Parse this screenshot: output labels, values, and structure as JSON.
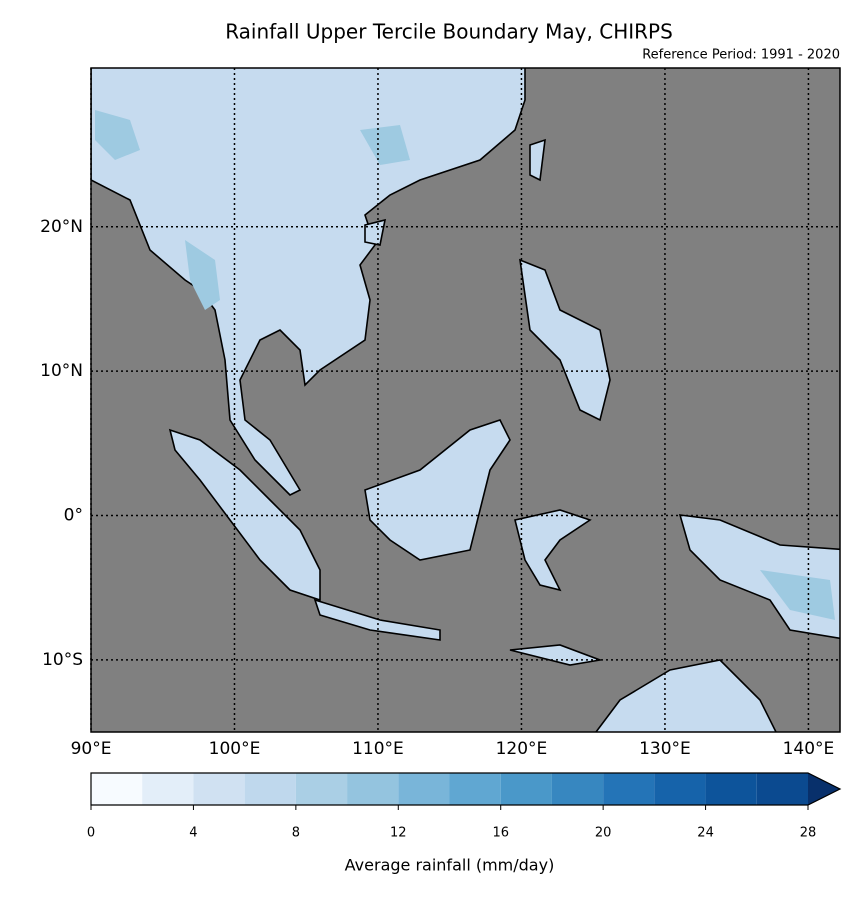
{
  "chart_data": {
    "type": "map",
    "title": "Rainfall Upper Tercile Boundary May, CHIRPS",
    "subtitle": "Reference Period: 1991 - 2020",
    "xlim": [
      90,
      142.2
    ],
    "ylim": [
      -15,
      31
    ],
    "xticks": [
      {
        "value": 90,
        "label": "90°E"
      },
      {
        "value": 100,
        "label": "100°E"
      },
      {
        "value": 110,
        "label": "110°E"
      },
      {
        "value": 120,
        "label": "120°E"
      },
      {
        "value": 130,
        "label": "130°E"
      },
      {
        "value": 140,
        "label": "140°E"
      }
    ],
    "yticks": [
      {
        "value": -10,
        "label": "10°S"
      },
      {
        "value": 0,
        "label": "0°"
      },
      {
        "value": 10,
        "label": "10°N"
      },
      {
        "value": 20,
        "label": "20°N"
      }
    ],
    "grid": true,
    "colorbar": {
      "label": "Average rainfall (mm/day)",
      "levels": [
        0,
        2,
        4,
        6,
        8,
        10,
        12,
        14,
        16,
        18,
        20,
        22,
        24,
        26,
        28
      ],
      "colors": [
        "#f7fbff",
        "#e3eef9",
        "#d0e1f2",
        "#bfd8ed",
        "#aacfe5",
        "#94c4df",
        "#79b5d9",
        "#60a7d2",
        "#4a98c9",
        "#3787c0",
        "#2474b7",
        "#1663aa",
        "#0d549b",
        "#0b4a90"
      ],
      "over_color": "#08306b",
      "ticks": [
        0,
        4,
        8,
        12,
        16,
        20,
        24,
        28
      ]
    }
  }
}
